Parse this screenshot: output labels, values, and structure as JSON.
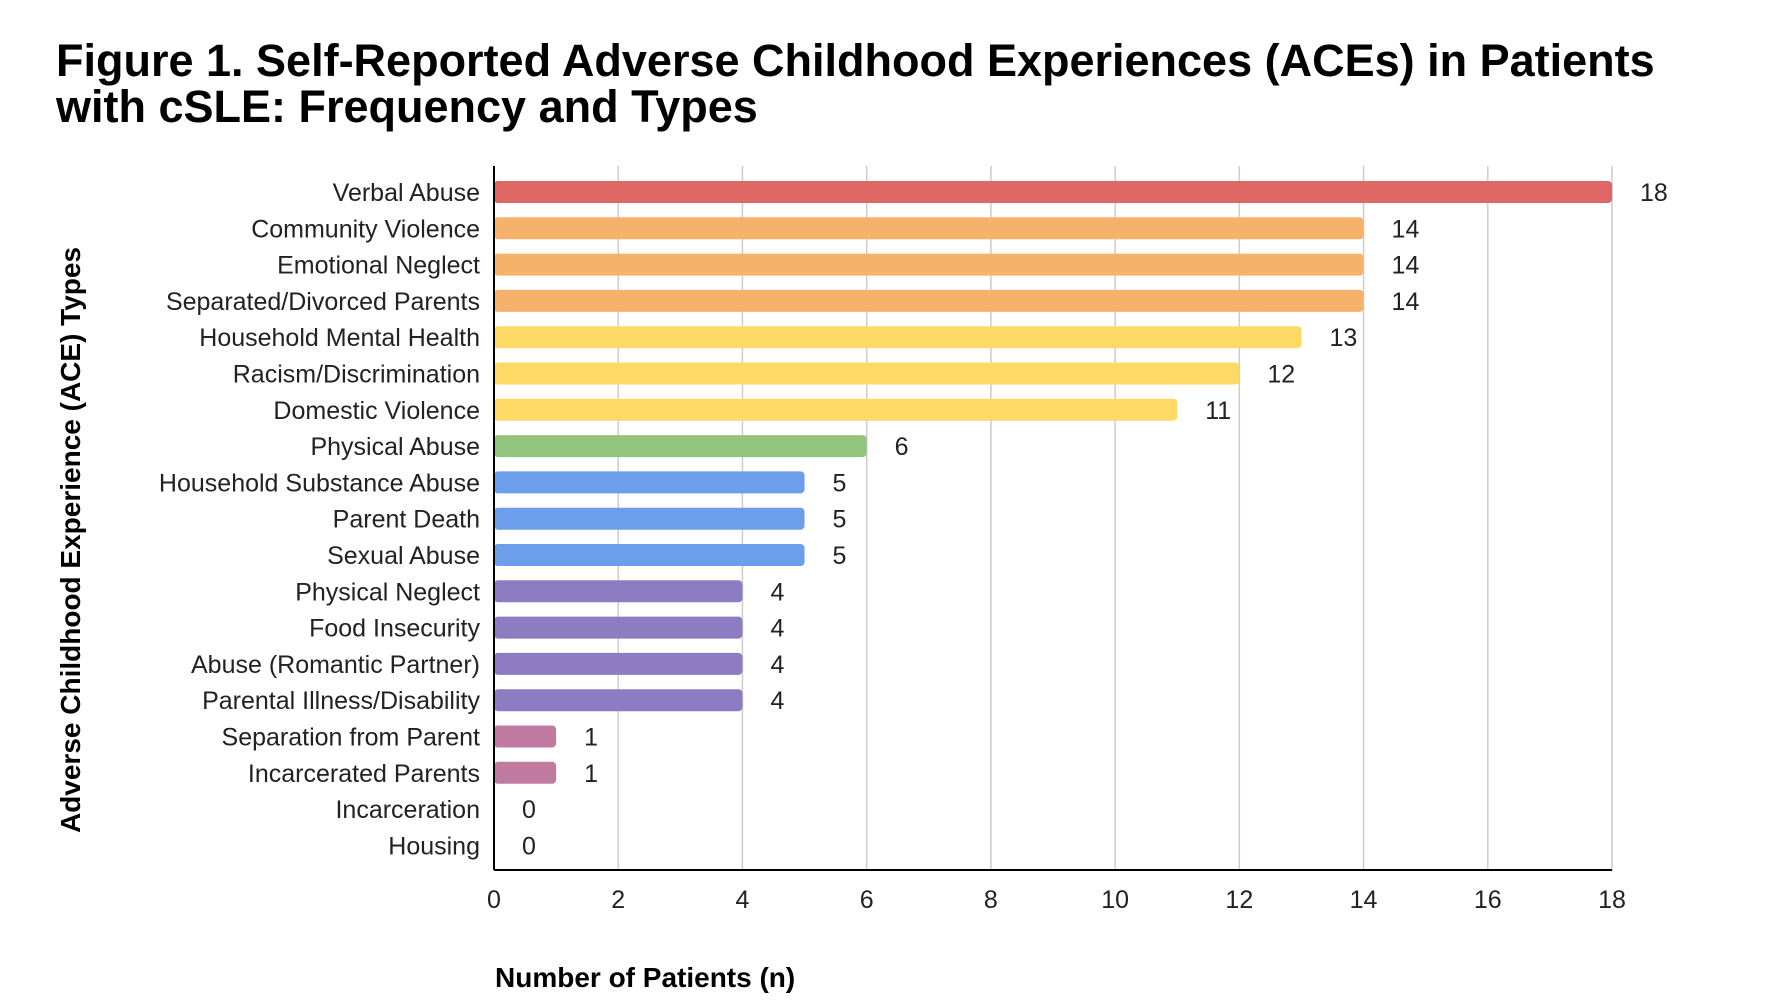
{
  "chart_data": {
    "type": "bar",
    "orientation": "horizontal",
    "title": "Figure 1. Self-Reported Adverse Childhood Experiences (ACEs) in Patients with cSLE: Frequency and Types",
    "xlabel": "Number of Patients (n)",
    "ylabel": "Adverse Childhood Experience (ACE) Types",
    "xlim": [
      0,
      18
    ],
    "xticks": [
      0,
      2,
      4,
      6,
      8,
      10,
      12,
      14,
      16,
      18
    ],
    "grid": "vertical",
    "legend": "none",
    "categories": [
      "Verbal Abuse",
      "Community Violence",
      "Emotional Neglect",
      "Separated/Divorced Parents",
      "Household Mental Health",
      "Racism/Discrimination",
      "Domestic Violence",
      "Physical Abuse",
      "Household Substance Abuse",
      "Parent Death",
      "Sexual Abuse",
      "Physical Neglect",
      "Food Insecurity",
      "Abuse (Romantic Partner)",
      "Parental Illness/Disability",
      "Separation from Parent",
      "Incarcerated Parents",
      "Incarceration",
      "Housing"
    ],
    "values": [
      18,
      14,
      14,
      14,
      13,
      12,
      11,
      6,
      5,
      5,
      5,
      4,
      4,
      4,
      4,
      1,
      1,
      0,
      0
    ],
    "colors": [
      "#e06666",
      "#f6b26b",
      "#f6b26b",
      "#f6b26b",
      "#ffd966",
      "#ffd966",
      "#ffd966",
      "#93c47d",
      "#6d9eeb",
      "#6d9eeb",
      "#6d9eeb",
      "#8e7cc3",
      "#8e7cc3",
      "#8e7cc3",
      "#8e7cc3",
      "#c27ba0",
      "#c27ba0",
      "#c27ba0",
      "#c27ba0"
    ]
  }
}
